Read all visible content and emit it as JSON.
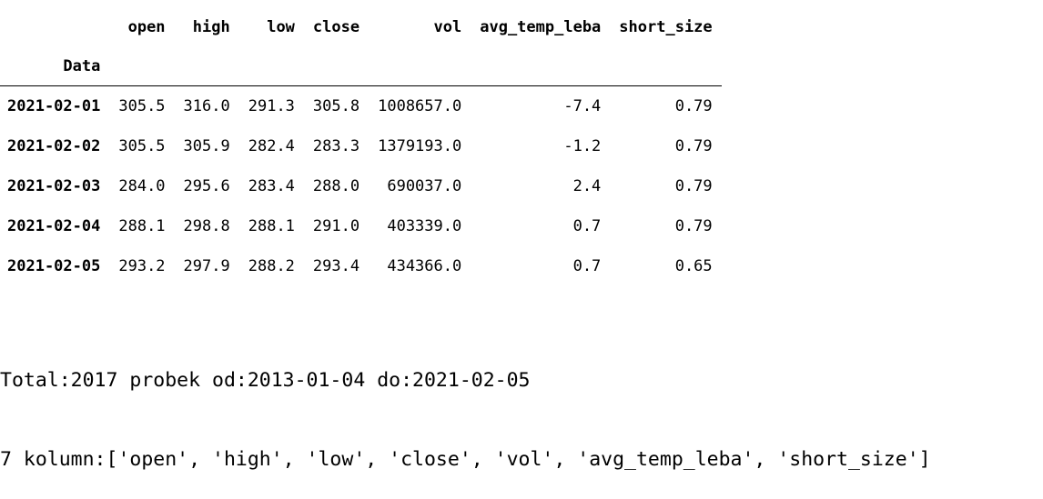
{
  "table": {
    "index_name": "Data",
    "columns": [
      "open",
      "high",
      "low",
      "close",
      "vol",
      "avg_temp_leba",
      "short_size"
    ],
    "rows": [
      {
        "index": "2021-02-01",
        "values": [
          "305.5",
          "316.0",
          "291.3",
          "305.8",
          "1008657.0",
          "-7.4",
          "0.79"
        ]
      },
      {
        "index": "2021-02-02",
        "values": [
          "305.5",
          "305.9",
          "282.4",
          "283.3",
          "1379193.0",
          "-1.2",
          "0.79"
        ]
      },
      {
        "index": "2021-02-03",
        "values": [
          "284.0",
          "295.6",
          "283.4",
          "288.0",
          "690037.0",
          "2.4",
          "0.79"
        ]
      },
      {
        "index": "2021-02-04",
        "values": [
          "288.1",
          "298.8",
          "288.1",
          "291.0",
          "403339.0",
          "0.7",
          "0.79"
        ]
      },
      {
        "index": "2021-02-05",
        "values": [
          "293.2",
          "297.9",
          "288.2",
          "293.4",
          "434366.0",
          "0.7",
          "0.65"
        ]
      }
    ]
  },
  "output": {
    "line1": "Total:2017 probek od:2013-01-04 do:2021-02-05",
    "line2": "7 kolumn:['open', 'high', 'low', 'close', 'vol', 'avg_temp_leba', 'short_size']"
  }
}
